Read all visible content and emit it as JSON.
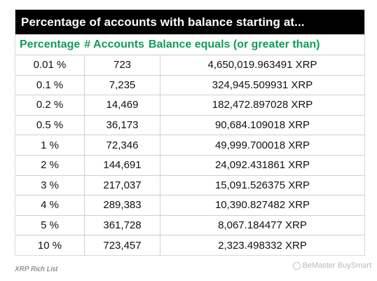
{
  "table": {
    "title": "Percentage of accounts with balance starting at...",
    "headers": [
      "Percentage",
      "# Accounts",
      "Balance equals (or greater than)"
    ],
    "rows": [
      [
        "0.01 %",
        "723",
        "4,650,019.963491 XRP"
      ],
      [
        "0.1 %",
        "7,235",
        "324,945.509931 XRP"
      ],
      [
        "0.2 %",
        "14,469",
        "182,472.897028 XRP"
      ],
      [
        "0.5 %",
        "36,173",
        "90,684.109018 XRP"
      ],
      [
        "1 %",
        "72,346",
        "49,999.700018 XRP"
      ],
      [
        "2 %",
        "144,691",
        "24,092.431861 XRP"
      ],
      [
        "3 %",
        "217,037",
        "15,091.526375 XRP"
      ],
      [
        "4 %",
        "289,383",
        "10,390.827482 XRP"
      ],
      [
        "5 %",
        "361,728",
        "8,067.184477 XRP"
      ],
      [
        "10 %",
        "723,457",
        "2,323.498332 XRP"
      ]
    ]
  },
  "caption": "XRP Rich List",
  "watermark": "BeMaster BuySmart",
  "colors": {
    "header_text": "#0f9d58",
    "title_bg": "#000000"
  }
}
